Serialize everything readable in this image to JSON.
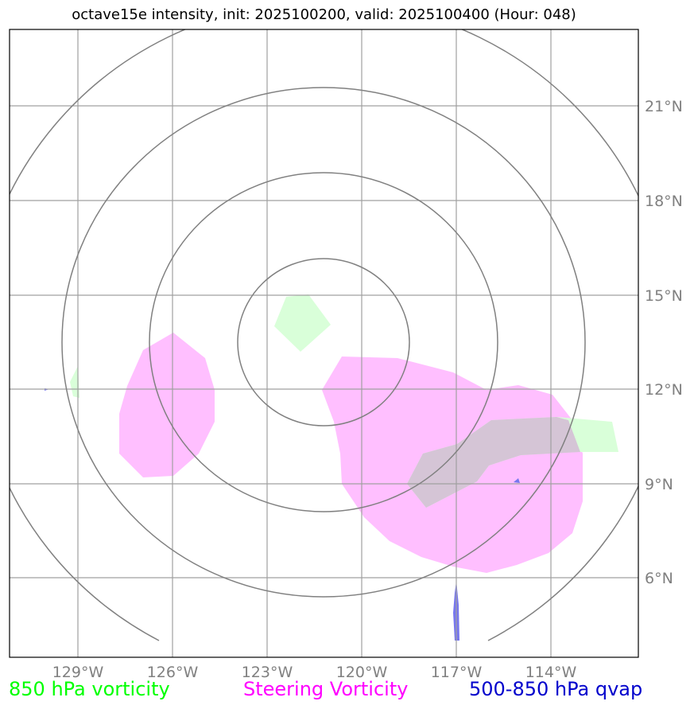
{
  "title": "octave15e intensity, init: 2025100200, valid: 2025100400 (Hour: 048)",
  "lon_ticks": [
    "129°W",
    "126°W",
    "123°W",
    "120°W",
    "117°W",
    "114°W"
  ],
  "lat_ticks": [
    "21°N",
    "18°N",
    "15°N",
    "12°N",
    "9°N",
    "6°N"
  ],
  "legend": [
    {
      "label": "850 hPa vorticity",
      "color": "#00ff00"
    },
    {
      "label": "Steering Vorticity",
      "color": "#ff00ff"
    },
    {
      "label": "500-850 hPa qvap",
      "color": "#0000cc"
    }
  ],
  "colors": {
    "vort850": "#d9ffd9",
    "steering": "#ffbfff",
    "overlap": "#d5c5d6",
    "qvap": "#7777ee",
    "grid": "#a0a0a0",
    "rings": "#808080"
  }
}
